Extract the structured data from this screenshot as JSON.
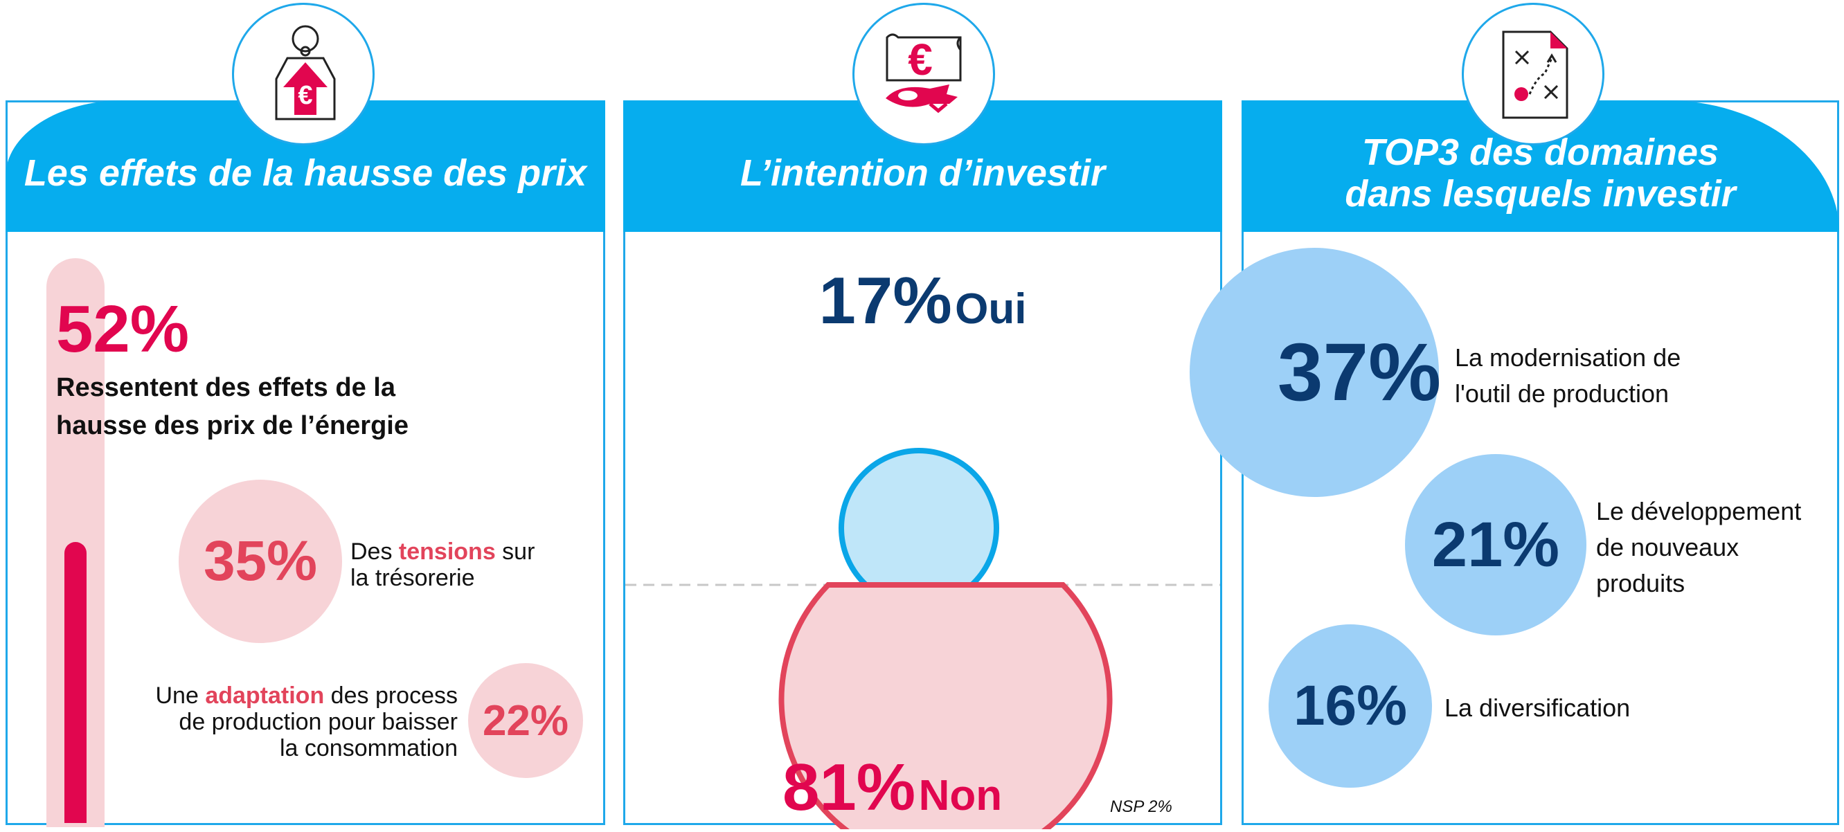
{
  "panels": {
    "prix": {
      "title": "Les effets de la hausse des prix",
      "main_pct": "52%",
      "main_text_line1": "Ressentent des effets de la",
      "main_text_line2": "hausse des prix de l’énergie",
      "item1": {
        "pct": "35%",
        "pre": "Des ",
        "highlight": "tensions",
        "post": " sur",
        "line2": "la trésorerie"
      },
      "item2": {
        "pct": "22%",
        "pre": "Une ",
        "highlight": "adaptation",
        "post": " des process",
        "line2": "de production pour baisser",
        "line3": "la consommation"
      }
    },
    "invest": {
      "title": "L’intention d’investir",
      "oui_pct": "17%",
      "oui_label": "Oui",
      "non_pct": "81%",
      "non_label": "Non",
      "nsp": "NSP 2%"
    },
    "top3": {
      "title_line1": "TOP3 des domaines",
      "title_line2": "dans lesquels investir",
      "items": [
        {
          "pct": "37%",
          "line1": "La modernisation de",
          "line2": "l'outil de production",
          "line3": ""
        },
        {
          "pct": "21%",
          "line1": "Le développement",
          "line2": "de nouveaux",
          "line3": "produits"
        },
        {
          "pct": "16%",
          "line1": "La diversification",
          "line2": "",
          "line3": ""
        }
      ]
    }
  },
  "chart_data": [
    {
      "type": "bar",
      "title": "Les effets de la hausse des prix",
      "categories": [
        "Ressentent des effets de la hausse des prix de l’énergie"
      ],
      "values": [
        52
      ],
      "ylim": [
        0,
        100
      ]
    },
    {
      "type": "pie",
      "title": "L’intention d’investir",
      "categories": [
        "Oui",
        "Non",
        "NSP"
      ],
      "values": [
        17,
        81,
        2
      ]
    },
    {
      "type": "bar",
      "title": "TOP3 des domaines dans lesquels investir",
      "categories": [
        "La modernisation de l'outil de production",
        "Le développement de nouveaux produits",
        "La diversification"
      ],
      "values": [
        37,
        21,
        16
      ]
    }
  ],
  "colors": {
    "accent": "#06adee",
    "navy": "#0b3a70",
    "red": "#e1064f",
    "pink": "#e2445b",
    "pink_light": "#f7d3d7",
    "blue_light": "#9dd0f7"
  },
  "icons": [
    "price-tag-euro-icon",
    "banknote-piggy-icon",
    "strategy-plan-icon"
  ]
}
